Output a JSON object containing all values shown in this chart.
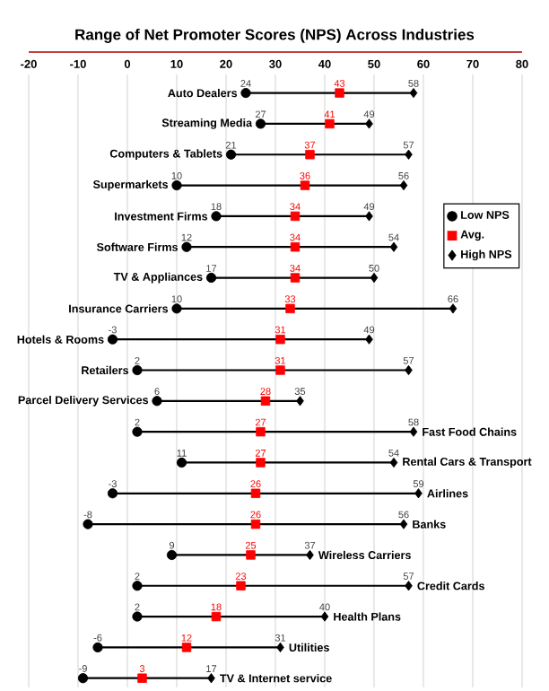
{
  "chart_data": {
    "type": "scatter",
    "orientation": "horizontal",
    "title": "Range of Net Promoter Scores (NPS) Across Industries",
    "categories": [
      "Auto Dealers",
      "Streaming Media",
      "Computers & Tablets",
      "Supermarkets",
      "Investment Firms",
      "Software Firms",
      "TV & Appliances",
      "Insurance Carriers",
      "Hotels & Rooms",
      "Retailers",
      "Parcel Delivery Services",
      "Fast Food Chains",
      "Rental Cars & Transport",
      "Airlines",
      "Banks",
      "Wireless Carriers",
      "Credit Cards",
      "Health Plans",
      "Utilities",
      "TV & Internet service"
    ],
    "series": [
      {
        "name": "Low NPS",
        "color": "#000000",
        "marker": "circle",
        "values": [
          24,
          27,
          21,
          10,
          18,
          12,
          17,
          10,
          -3,
          2,
          6,
          2,
          11,
          -3,
          -8,
          9,
          2,
          2,
          -6,
          -9
        ]
      },
      {
        "name": "Avg.",
        "color": "#ff0000",
        "marker": "square",
        "values": [
          43,
          41,
          37,
          36,
          34,
          34,
          34,
          33,
          31,
          31,
          28,
          27,
          27,
          26,
          26,
          25,
          23,
          18,
          12,
          3
        ]
      },
      {
        "name": "High NPS",
        "color": "#000000",
        "marker": "diamond",
        "values": [
          58,
          49,
          57,
          56,
          49,
          54,
          50,
          66,
          49,
          57,
          35,
          58,
          54,
          59,
          56,
          37,
          57,
          40,
          31,
          17
        ]
      }
    ],
    "xlim": [
      -20,
      80
    ],
    "xticks": [
      -20,
      -10,
      0,
      10,
      20,
      30,
      40,
      50,
      60,
      70,
      80
    ],
    "grid": "x",
    "legend": "top right",
    "data_labels": true
  }
}
